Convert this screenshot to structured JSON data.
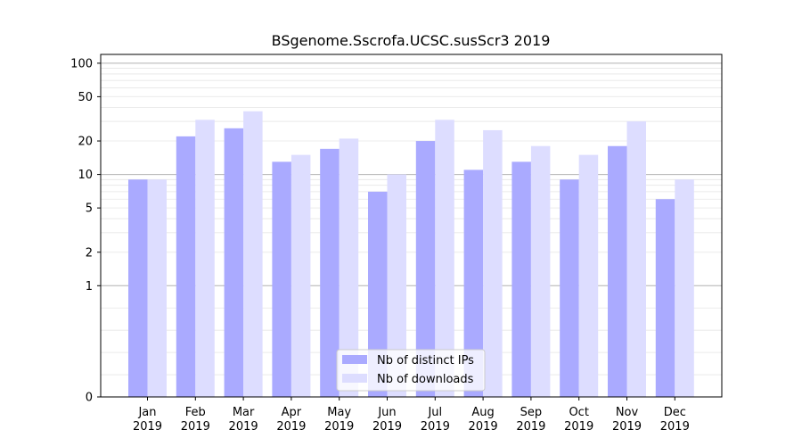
{
  "chart_data": {
    "type": "bar",
    "title": "BSgenome.Sscrofa.UCSC.susScr3 2019",
    "xlabel": "",
    "ylabel": "",
    "y_scale": "symlog",
    "ylim": [
      0,
      120
    ],
    "y_ticks": [
      0,
      1,
      2,
      5,
      10,
      20,
      50,
      100
    ],
    "y_tick_labels": [
      "0",
      "1",
      "2",
      "5",
      "10",
      "20",
      "50",
      "100"
    ],
    "categories": [
      [
        "Jan",
        "2019"
      ],
      [
        "Feb",
        "2019"
      ],
      [
        "Mar",
        "2019"
      ],
      [
        "Apr",
        "2019"
      ],
      [
        "May",
        "2019"
      ],
      [
        "Jun",
        "2019"
      ],
      [
        "Jul",
        "2019"
      ],
      [
        "Aug",
        "2019"
      ],
      [
        "Sep",
        "2019"
      ],
      [
        "Oct",
        "2019"
      ],
      [
        "Nov",
        "2019"
      ],
      [
        "Dec",
        "2019"
      ]
    ],
    "series": [
      {
        "name": "Nb of distinct IPs",
        "color": "#aaaaff",
        "values": [
          9,
          22,
          26,
          13,
          17,
          7,
          20,
          11,
          13,
          9,
          18,
          6
        ]
      },
      {
        "name": "Nb of downloads",
        "color": "#ddddff",
        "values": [
          9,
          31,
          37,
          15,
          21,
          10,
          31,
          25,
          18,
          15,
          30,
          9
        ]
      }
    ],
    "grid": true,
    "legend_position": "lower-center"
  }
}
